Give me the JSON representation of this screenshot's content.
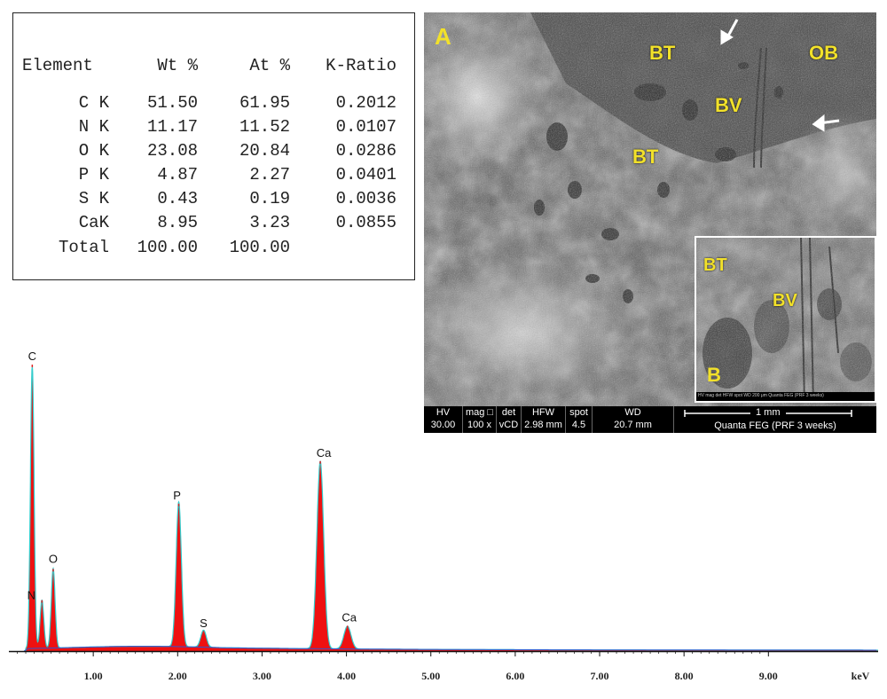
{
  "eds_table": {
    "headers": [
      "Element",
      "Wt %",
      "At %",
      "K-Ratio"
    ],
    "rows": [
      {
        "element": "C K",
        "wt": "51.50",
        "at": "61.95",
        "kratio": "0.2012"
      },
      {
        "element": "N K",
        "wt": "11.17",
        "at": "11.52",
        "kratio": "0.0107"
      },
      {
        "element": "O K",
        "wt": "23.08",
        "at": "20.84",
        "kratio": "0.0286"
      },
      {
        "element": "P K",
        "wt": "4.87",
        "at": "2.27",
        "kratio": "0.0401"
      },
      {
        "element": "S K",
        "wt": "0.43",
        "at": "0.19",
        "kratio": "0.0036"
      },
      {
        "element": "CaK",
        "wt": "8.95",
        "at": "3.23",
        "kratio": "0.0855"
      }
    ],
    "total": {
      "element": "Total",
      "wt": "100.00",
      "at": "100.00",
      "kratio": ""
    }
  },
  "sem": {
    "panel_letter": "A",
    "labels": {
      "bt1": "BT",
      "ob": "OB",
      "bv": "BV",
      "bt2": "BT"
    },
    "inset": {
      "panel_letter": "B",
      "labels": {
        "bt": "BT",
        "bv": "BV"
      },
      "databar_text": "HV  mag  det  HFW  spot  WD  200 μm  Quanta FEG (PRF 3 weeks)"
    },
    "databar": {
      "cells": [
        {
          "top": "HV",
          "bottom": "30.00 kV"
        },
        {
          "top": "mag □",
          "bottom": "100 x"
        },
        {
          "top": "det",
          "bottom": "vCD"
        },
        {
          "top": "HFW",
          "bottom": "2.98 mm"
        },
        {
          "top": "spot",
          "bottom": "4.5"
        },
        {
          "top": "WD",
          "bottom": "20.7 mm"
        }
      ],
      "scale": "1 mm",
      "instrument": "Quanta FEG (PRF 3 weeks)"
    },
    "colors": {
      "label": "#f2e12a",
      "arrow": "#ffffff"
    }
  },
  "chart_data": {
    "type": "area",
    "title": "",
    "xlabel": "keV",
    "ylabel": "",
    "xlim": [
      0,
      10.3
    ],
    "ylim": [
      0,
      100
    ],
    "x_ticks": [
      "1.00",
      "2.00",
      "3.00",
      "4.00",
      "5.00",
      "6.00",
      "7.00",
      "8.00",
      "9.00"
    ],
    "x_tick_values": [
      1,
      2,
      3,
      4,
      5,
      6,
      7,
      8,
      9
    ],
    "peaks": [
      {
        "label": "C",
        "energy": 0.277,
        "height": 100
      },
      {
        "label": "N",
        "energy": 0.392,
        "height": 17
      },
      {
        "label": "O",
        "energy": 0.525,
        "height": 28
      },
      {
        "label": "P",
        "energy": 2.013,
        "height": 51
      },
      {
        "label": "S",
        "energy": 2.307,
        "height": 6
      },
      {
        "label": "Ca",
        "energy": 3.69,
        "height": 66
      },
      {
        "label": "Ca",
        "energy": 4.012,
        "height": 8
      }
    ],
    "colors": {
      "fill": "#ee1111",
      "outline": "#33cccc",
      "background_line": "#3355cc"
    }
  }
}
